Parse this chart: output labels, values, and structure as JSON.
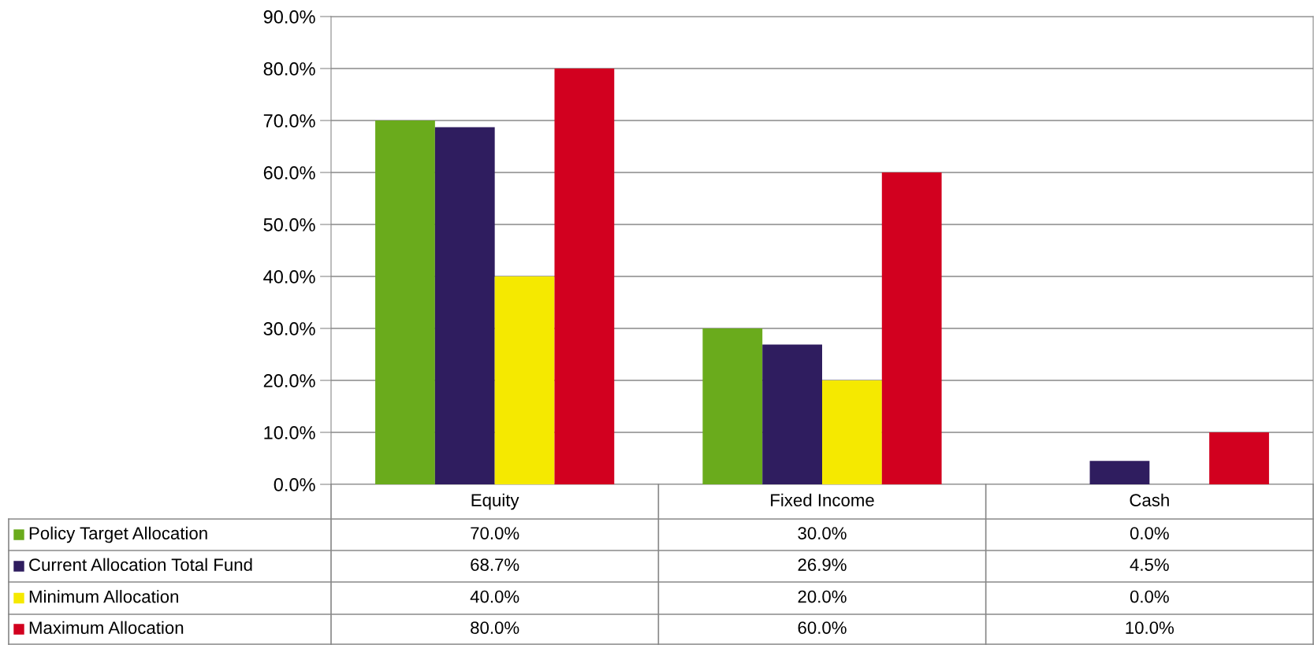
{
  "chart_data": {
    "type": "bar",
    "categories": [
      "Equity",
      "Fixed Income",
      "Cash"
    ],
    "series": [
      {
        "name": "Policy Target Allocation",
        "color": "#6aab1c",
        "values": [
          70.0,
          30.0,
          0.0
        ],
        "value_labels": [
          "70.0%",
          "30.0%",
          "0.0%"
        ]
      },
      {
        "name": "Current Allocation Total Fund",
        "color": "#2f1d5f",
        "values": [
          68.7,
          26.9,
          4.5
        ],
        "value_labels": [
          "68.7%",
          "26.9%",
          "4.5%"
        ]
      },
      {
        "name": "Minimum Allocation",
        "color": "#f5e900",
        "values": [
          40.0,
          20.0,
          0.0
        ],
        "value_labels": [
          "40.0%",
          "20.0%",
          "0.0%"
        ]
      },
      {
        "name": "Maximum Allocation",
        "color": "#d2001f",
        "values": [
          80.0,
          60.0,
          10.0
        ],
        "value_labels": [
          "80.0%",
          "60.0%",
          "10.0%"
        ]
      }
    ],
    "ylim": [
      0,
      90
    ],
    "yticks": [
      {
        "value": 0,
        "label": "0.0%"
      },
      {
        "value": 10,
        "label": "10.0%"
      },
      {
        "value": 20,
        "label": "20.0%"
      },
      {
        "value": 30,
        "label": "30.0%"
      },
      {
        "value": 40,
        "label": "40.0%"
      },
      {
        "value": 50,
        "label": "50.0%"
      },
      {
        "value": 60,
        "label": "60.0%"
      },
      {
        "value": 70,
        "label": "70.0%"
      },
      {
        "value": 80,
        "label": "80.0%"
      },
      {
        "value": 90,
        "label": "90.0%"
      }
    ],
    "grid": "y",
    "legend": "bottom left"
  }
}
